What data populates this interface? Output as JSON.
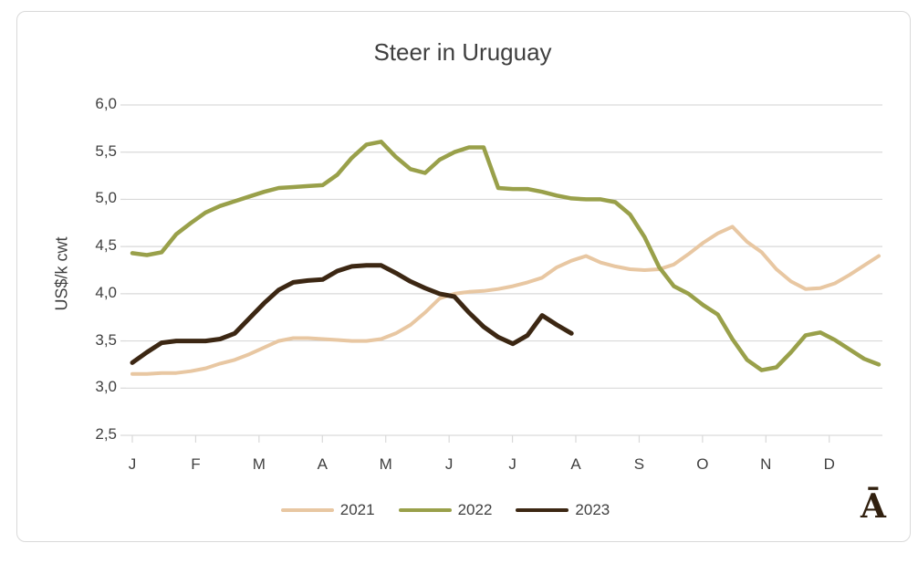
{
  "chart_data": {
    "type": "line",
    "title": "Steer in Uruguay",
    "ylabel": "US$/k cwt",
    "ylim": [
      2.5,
      6.0
    ],
    "ytick_step": 0.5,
    "ytick_labels": [
      "6,0",
      "5,5",
      "5,0",
      "4,5",
      "4,0",
      "3,5",
      "3,0",
      "2,5"
    ],
    "ytick_values": [
      6.0,
      5.5,
      5.0,
      4.5,
      4.0,
      3.5,
      3.0,
      2.5
    ],
    "x_months": [
      "J",
      "F",
      "M",
      "A",
      "M",
      "J",
      "J",
      "A",
      "S",
      "O",
      "N",
      "D"
    ],
    "x_unit": "weekly",
    "grid": "horizontal-only",
    "legend_position": "bottom-center",
    "grid_color": "#d9d9d9",
    "series": [
      {
        "name": "2021",
        "color": "#e8c7a2",
        "stroke_width": 4,
        "values": [
          3.15,
          3.15,
          3.16,
          3.16,
          3.18,
          3.21,
          3.26,
          3.3,
          3.36,
          3.43,
          3.5,
          3.53,
          3.53,
          3.52,
          3.51,
          3.5,
          3.5,
          3.52,
          3.58,
          3.67,
          3.8,
          3.95,
          4.0,
          4.02,
          4.03,
          4.05,
          4.08,
          4.12,
          4.17,
          4.28,
          4.35,
          4.4,
          4.33,
          4.29,
          4.26,
          4.25,
          4.26,
          4.31,
          4.42,
          4.54,
          4.64,
          4.71,
          4.55,
          4.44,
          4.26,
          4.13,
          4.05,
          4.06,
          4.11,
          4.2,
          4.3,
          4.4
        ]
      },
      {
        "name": "2022",
        "color": "#99a04a",
        "stroke_width": 4.5,
        "values": [
          4.43,
          4.41,
          4.44,
          4.63,
          4.75,
          4.86,
          4.93,
          4.98,
          5.03,
          5.08,
          5.12,
          5.13,
          5.14,
          5.15,
          5.26,
          5.44,
          5.58,
          5.61,
          5.45,
          5.32,
          5.28,
          5.42,
          5.5,
          5.55,
          5.55,
          5.12,
          5.11,
          5.11,
          5.08,
          5.04,
          5.01,
          5.0,
          5.0,
          4.97,
          4.84,
          4.6,
          4.28,
          4.08,
          4.0,
          3.88,
          3.78,
          3.52,
          3.3,
          3.19,
          3.22,
          3.38,
          3.56,
          3.59,
          3.51,
          3.41,
          3.31,
          3.25
        ]
      },
      {
        "name": "2023",
        "color": "#3c2713",
        "stroke_width": 5,
        "values": [
          3.27,
          3.38,
          3.48,
          3.5,
          3.5,
          3.5,
          3.52,
          3.58,
          3.74,
          3.9,
          4.04,
          4.12,
          4.14,
          4.15,
          4.24,
          4.29,
          4.3,
          4.3,
          4.22,
          4.13,
          4.06,
          4.0,
          3.97,
          3.8,
          3.65,
          3.54,
          3.47,
          3.56,
          3.77,
          3.67,
          3.58
        ]
      }
    ]
  },
  "annotations": {
    "corner_glyph": "Ā"
  }
}
